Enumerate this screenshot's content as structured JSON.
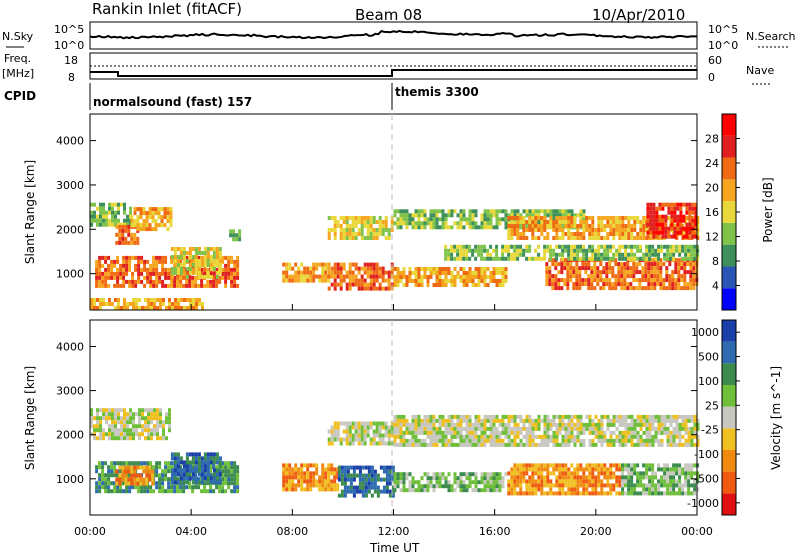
{
  "header": {
    "station": "Rankin Inlet (fitACF)",
    "beam": "Beam 08",
    "date": "10/Apr/2010"
  },
  "summary_panels": {
    "nsky_label": "N.Sky",
    "nsky_ticks": [
      "10^5",
      "10^0"
    ],
    "nsearch_label": "N.Search",
    "nsearch_ticks": [
      "10^5",
      "10^0"
    ],
    "freq_label": "Freq.",
    "freq_unit": "[MHz]",
    "freq_ticks": [
      "18",
      "8"
    ],
    "nave_label": "Nave",
    "nave_ticks": [
      "60",
      "0"
    ],
    "cpid_label": "CPID",
    "cpid_segments": [
      {
        "start_hour": 0,
        "label": "normalsound (fast) 157"
      },
      {
        "start_hour": 12,
        "label": "themis 3300"
      }
    ]
  },
  "colors": {
    "power_scale": [
      "#0000ff",
      "#2b55b4",
      "#3d8f5c",
      "#7fc34a",
      "#e8d83a",
      "#f5a51e",
      "#f06a14",
      "#e02020",
      "#ff0000"
    ],
    "velocity_scale": [
      "#1a3fa8",
      "#2e6bb0",
      "#3b8b4f",
      "#6fbf3a",
      "#c8c8c0",
      "#f0c020",
      "#f08a10",
      "#f05a10",
      "#e01010"
    ]
  },
  "chart_data": [
    {
      "type": "heatmap",
      "title": "",
      "xlabel": "Time UT",
      "ylabel": "Slant Range [km]",
      "x_ticks": [
        "00:00",
        "04:00",
        "08:00",
        "12:00",
        "16:00",
        "20:00",
        "00:00"
      ],
      "xlim_hours": [
        0,
        24
      ],
      "y_ticks": [
        "1000",
        "2000",
        "3000",
        "4000"
      ],
      "ylim_km": [
        180,
        4600
      ],
      "colorbar": {
        "label": "Power [dB]",
        "range": [
          0,
          32
        ],
        "ticks": [
          "4",
          "8",
          "12",
          "16",
          "20",
          "24",
          "28"
        ]
      },
      "blobs": [
        {
          "t0": 0.0,
          "t1": 1.6,
          "r0": 2100,
          "r1": 2600,
          "v": 12
        },
        {
          "t0": 1.0,
          "t1": 1.9,
          "r0": 1700,
          "r1": 2100,
          "v": 22
        },
        {
          "t0": 1.6,
          "t1": 3.2,
          "r0": 2000,
          "r1": 2500,
          "v": 18
        },
        {
          "t0": 0.2,
          "t1": 5.8,
          "r0": 700,
          "r1": 1400,
          "v": 22
        },
        {
          "t0": 3.2,
          "t1": 5.2,
          "r0": 950,
          "r1": 1600,
          "v": 16
        },
        {
          "t0": 0.0,
          "t1": 4.5,
          "r0": 250,
          "r1": 450,
          "v": 20
        },
        {
          "t0": 5.5,
          "t1": 5.9,
          "r0": 1800,
          "r1": 2000,
          "v": 8
        },
        {
          "t0": 7.6,
          "t1": 9.4,
          "r0": 800,
          "r1": 1250,
          "v": 18
        },
        {
          "t0": 9.4,
          "t1": 12.0,
          "r0": 650,
          "r1": 1250,
          "v": 24
        },
        {
          "t0": 9.4,
          "t1": 12.0,
          "r0": 1800,
          "r1": 2300,
          "v": 14
        },
        {
          "t0": 12.0,
          "t1": 19.5,
          "r0": 2000,
          "r1": 2450,
          "v": 12
        },
        {
          "t0": 12.0,
          "t1": 16.5,
          "r0": 750,
          "r1": 1150,
          "v": 20
        },
        {
          "t0": 16.5,
          "t1": 24.0,
          "r0": 1800,
          "r1": 2300,
          "v": 20
        },
        {
          "t0": 18.0,
          "t1": 24.0,
          "r0": 700,
          "r1": 1350,
          "v": 24
        },
        {
          "t0": 14.0,
          "t1": 24.0,
          "r0": 1350,
          "r1": 1650,
          "v": 10
        },
        {
          "t0": 22.0,
          "t1": 24.0,
          "r0": 1800,
          "r1": 2600,
          "v": 26
        }
      ]
    },
    {
      "type": "heatmap",
      "title": "",
      "xlabel": "Time UT",
      "ylabel": "Slant Range [km]",
      "x_ticks": [
        "00:00",
        "04:00",
        "08:00",
        "12:00",
        "16:00",
        "20:00",
        "00:00"
      ],
      "xlim_hours": [
        0,
        24
      ],
      "y_ticks": [
        "1000",
        "2000",
        "3000",
        "4000"
      ],
      "ylim_km": [
        180,
        4600
      ],
      "colorbar": {
        "label": "Velocity [m s^-1]",
        "ticks": [
          "1000",
          "500",
          "100",
          "25",
          "-25",
          "-100",
          "-500",
          "-1000"
        ]
      },
      "blobs": [
        {
          "t0": 0.0,
          "t1": 3.2,
          "r0": 1900,
          "r1": 2600,
          "c": 4
        },
        {
          "t0": 0.2,
          "t1": 5.8,
          "r0": 700,
          "r1": 1400,
          "c": 2
        },
        {
          "t0": 1.0,
          "t1": 2.5,
          "r0": 900,
          "r1": 1300,
          "c": 6
        },
        {
          "t0": 3.2,
          "t1": 5.2,
          "r0": 950,
          "r1": 1600,
          "c": 1
        },
        {
          "t0": 7.6,
          "t1": 9.8,
          "r0": 800,
          "r1": 1350,
          "c": 6
        },
        {
          "t0": 9.8,
          "t1": 12.0,
          "r0": 650,
          "r1": 1300,
          "c": 1
        },
        {
          "t0": 9.4,
          "t1": 12.0,
          "r0": 1800,
          "r1": 2300,
          "c": 4
        },
        {
          "t0": 12.0,
          "t1": 24.0,
          "r0": 1800,
          "r1": 2450,
          "c": 4
        },
        {
          "t0": 12.0,
          "t1": 16.5,
          "r0": 750,
          "r1": 1150,
          "c": 3
        },
        {
          "t0": 16.5,
          "t1": 21.0,
          "r0": 700,
          "r1": 1350,
          "c": 6
        },
        {
          "t0": 21.0,
          "t1": 24.0,
          "r0": 700,
          "r1": 1350,
          "c": 3
        }
      ]
    }
  ]
}
